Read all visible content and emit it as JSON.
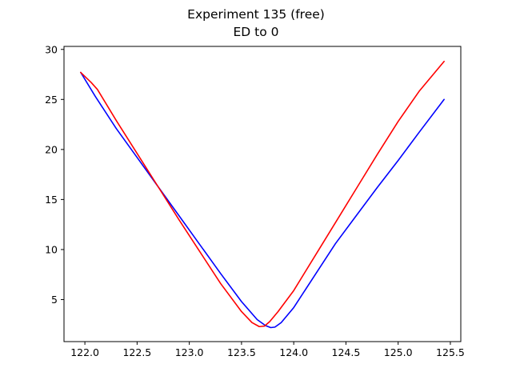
{
  "chart_data": {
    "type": "line",
    "title": "Experiment 135 (free)",
    "subtitle": "ED to 0",
    "xlabel": "",
    "ylabel": "",
    "xlim": [
      121.8,
      125.6
    ],
    "ylim": [
      0.8,
      30.3
    ],
    "xticks": [
      122.0,
      122.5,
      123.0,
      123.5,
      124.0,
      124.5,
      125.0,
      125.5
    ],
    "xtick_labels": [
      "122.0",
      "122.5",
      "123.0",
      "123.5",
      "124.0",
      "124.5",
      "125.0",
      "125.5"
    ],
    "yticks": [
      5,
      10,
      15,
      20,
      25,
      30
    ],
    "ytick_labels": [
      "5",
      "10",
      "15",
      "20",
      "25",
      "30"
    ],
    "grid": false,
    "series": [
      {
        "color": "#0000ff",
        "x": [
          121.96,
          122.1,
          122.3,
          122.5,
          122.7,
          122.9,
          123.1,
          123.3,
          123.5,
          123.65,
          123.73,
          123.78,
          123.82,
          123.88,
          124.0,
          124.2,
          124.4,
          124.6,
          124.8,
          125.0,
          125.2,
          125.44
        ],
        "y": [
          27.7,
          25.3,
          22.1,
          19.2,
          16.3,
          13.4,
          10.5,
          7.6,
          4.8,
          3.0,
          2.4,
          2.2,
          2.25,
          2.7,
          4.2,
          7.4,
          10.6,
          13.4,
          16.2,
          18.9,
          21.7,
          25.0
        ]
      },
      {
        "color": "#ff0000",
        "x": [
          121.96,
          122.06,
          122.12,
          122.3,
          122.5,
          122.7,
          122.9,
          123.1,
          123.3,
          123.5,
          123.6,
          123.67,
          123.72,
          123.77,
          123.85,
          124.0,
          124.2,
          124.4,
          124.6,
          124.8,
          125.0,
          125.2,
          125.44
        ],
        "y": [
          27.7,
          26.7,
          26.0,
          22.9,
          19.6,
          16.3,
          13.0,
          9.8,
          6.6,
          3.8,
          2.7,
          2.3,
          2.35,
          2.8,
          3.8,
          5.9,
          9.3,
          12.7,
          16.1,
          19.5,
          22.8,
          25.8,
          28.8
        ]
      }
    ]
  }
}
